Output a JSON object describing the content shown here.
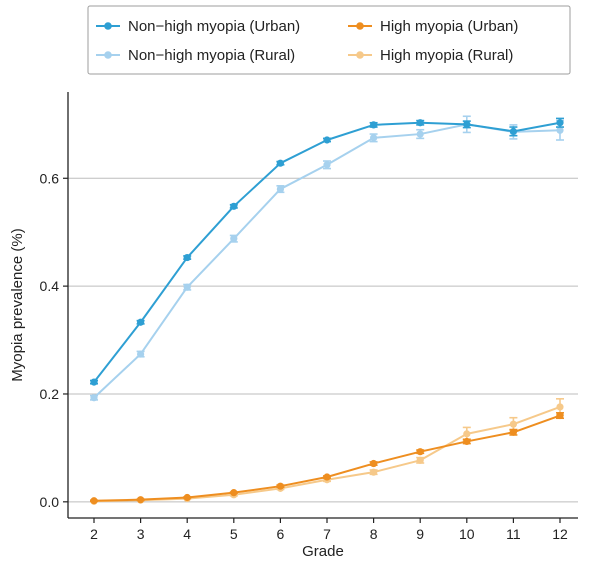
{
  "chart_data": {
    "type": "line",
    "title": "",
    "xlabel": "Grade",
    "ylabel": "Myopia prevalence (%)",
    "categories": [
      2,
      3,
      4,
      5,
      6,
      7,
      8,
      9,
      10,
      11,
      12
    ],
    "ylim": [
      -0.03,
      0.76
    ],
    "yticks": [
      0.0,
      0.2,
      0.4,
      0.6
    ],
    "ytick_labels": [
      "0.0",
      "0.2",
      "0.4",
      "0.6"
    ],
    "grid": "horizontal",
    "legend_position": "top",
    "series": [
      {
        "name": "Non−high myopia (Urban)",
        "color": "#2e9fd3",
        "values": [
          0.222,
          0.333,
          0.453,
          0.548,
          0.628,
          0.671,
          0.699,
          0.703,
          0.7,
          0.687,
          0.703
        ],
        "errors": [
          0.003,
          0.003,
          0.003,
          0.003,
          0.003,
          0.003,
          0.004,
          0.004,
          0.006,
          0.008,
          0.008
        ]
      },
      {
        "name": "Non−high myopia (Rural)",
        "color": "#a6d1ee",
        "values": [
          0.193,
          0.274,
          0.398,
          0.488,
          0.58,
          0.625,
          0.675,
          0.682,
          0.7,
          0.686,
          0.689
        ],
        "errors": [
          0.004,
          0.005,
          0.005,
          0.006,
          0.006,
          0.007,
          0.007,
          0.008,
          0.015,
          0.013,
          0.018
        ]
      },
      {
        "name": "High myopia (Urban)",
        "color": "#ee8e20",
        "values": [
          0.002,
          0.004,
          0.008,
          0.017,
          0.029,
          0.046,
          0.071,
          0.093,
          0.112,
          0.129,
          0.16
        ],
        "errors": [
          0.001,
          0.001,
          0.001,
          0.001,
          0.002,
          0.002,
          0.003,
          0.003,
          0.004,
          0.005,
          0.005
        ]
      },
      {
        "name": "High myopia (Rural)",
        "color": "#f6c98a",
        "values": [
          0.001,
          0.003,
          0.006,
          0.013,
          0.025,
          0.041,
          0.055,
          0.077,
          0.126,
          0.144,
          0.176
        ],
        "errors": [
          0.001,
          0.001,
          0.001,
          0.002,
          0.002,
          0.003,
          0.004,
          0.005,
          0.012,
          0.012,
          0.015
        ]
      }
    ],
    "legend": {
      "order": [
        [
          "Non−high myopia (Urban)",
          "High myopia (Urban)"
        ],
        [
          "Non−high myopia (Rural)",
          "High myopia (Rural)"
        ]
      ]
    }
  }
}
